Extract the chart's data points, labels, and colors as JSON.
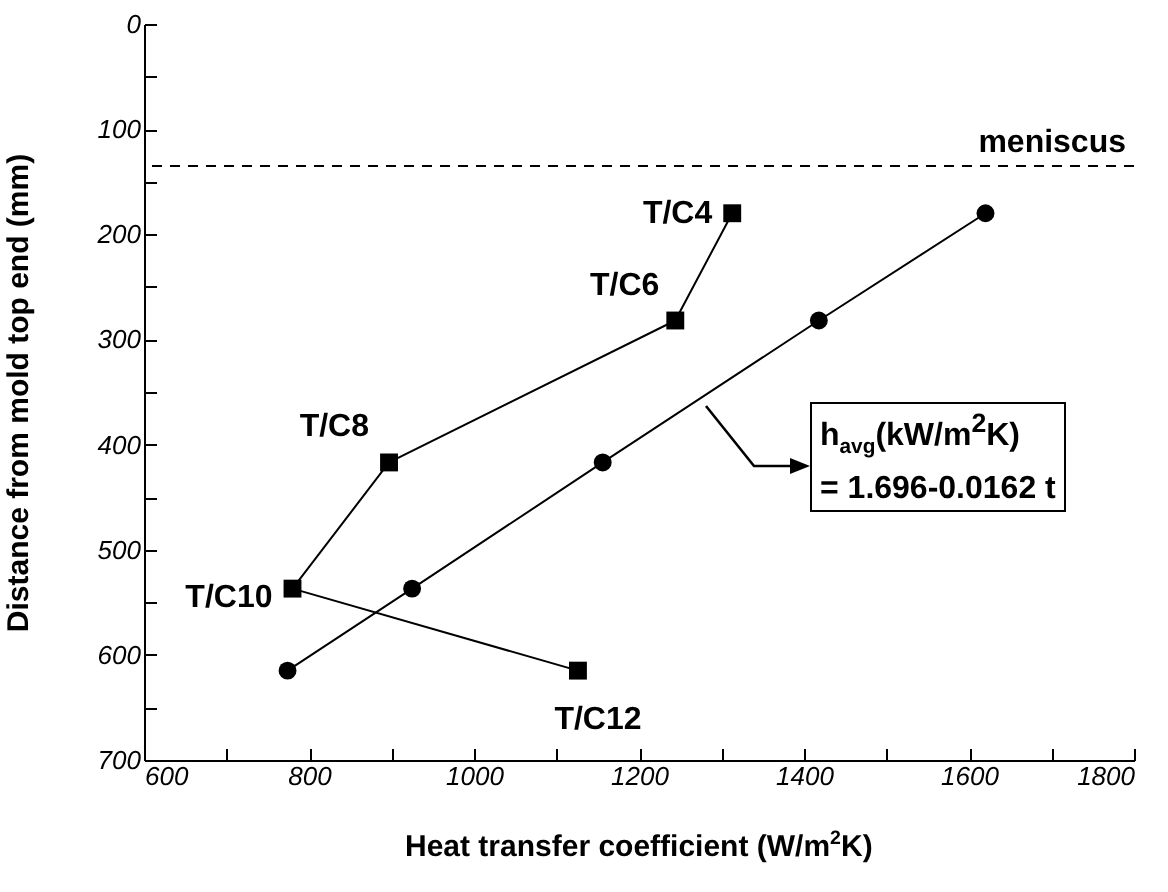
{
  "chart_data": {
    "type": "line",
    "xlabel": "Heat transfer coefficient (W/m$^{2}$K)",
    "ylabel": "Distance from mold top end (mm)",
    "series": [
      {
        "color": "#000000",
        "marker": "square",
        "x": [
          1313,
          1244,
          897,
          780,
          1126
        ],
        "values": [
          180,
          282,
          417,
          537,
          615
        ]
      },
      {
        "color": "#000000",
        "marker": "circle",
        "x": [
          1620,
          1418,
          1156,
          925,
          774
        ],
        "values": [
          180,
          282,
          417,
          537,
          615
        ]
      }
    ],
    "xlim": [
      600,
      1800
    ],
    "xticks": [
      600,
      {
        "value": 700,
        "label": null
      },
      800,
      {
        "value": 900,
        "label": null
      },
      1000,
      {
        "value": 1100,
        "label": null
      },
      1200,
      {
        "value": 1300,
        "label": null
      },
      1400,
      {
        "value": 1500,
        "label": null
      },
      1600,
      {
        "value": 1700,
        "label": null
      },
      1800
    ],
    "ylim": [
      700,
      0
    ],
    "yticks": [
      0,
      {
        "value": 50,
        "label": null
      },
      100,
      {
        "value": 150,
        "label": null
      },
      200,
      {
        "value": 250,
        "label": null
      },
      300,
      {
        "value": 350,
        "label": null
      },
      400,
      {
        "value": 450,
        "label": null
      },
      500,
      {
        "value": 550,
        "label": null
      },
      600,
      {
        "value": 650,
        "label": null
      },
      700
    ],
    "ref_lines": [
      {
        "axis": "y",
        "value": 135,
        "label": "meniscus",
        "line_style": "dashed"
      }
    ],
    "annotations": [
      {
        "text": "T/C4",
        "x": 1313,
        "y": 180
      },
      {
        "text": "T/C6",
        "x": 1244,
        "y": 282
      },
      {
        "text": "T/C8",
        "x": 897,
        "y": 417
      },
      {
        "text": "T/C10",
        "x": 780,
        "y": 537
      },
      {
        "text": "T/C12",
        "x": 1126,
        "y": 615
      },
      "h$_{avg}$(kW/m$^{2}$K)\n= 1.696-0.0162 t"
    ],
    "grid": false
  }
}
